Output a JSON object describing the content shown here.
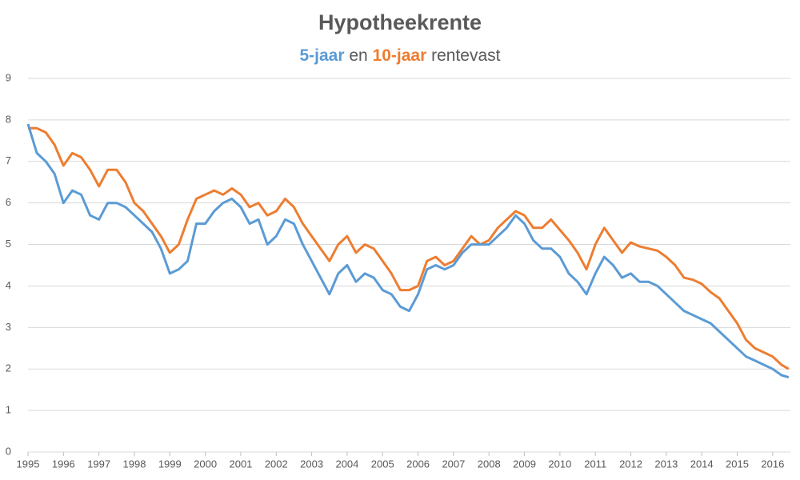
{
  "chart_data": {
    "type": "line",
    "title": "Hypotheekrente",
    "subtitle_parts": [
      "en",
      "rentevast"
    ],
    "x": [
      1995,
      1995.25,
      1995.5,
      1995.75,
      1996,
      1996.25,
      1996.5,
      1996.75,
      1997,
      1997.25,
      1997.5,
      1997.75,
      1998,
      1998.25,
      1998.5,
      1998.75,
      1999,
      1999.25,
      1999.5,
      1999.75,
      2000,
      2000.25,
      2000.5,
      2000.75,
      2001,
      2001.25,
      2001.5,
      2001.75,
      2002,
      2002.25,
      2002.5,
      2002.75,
      2003,
      2003.25,
      2003.5,
      2003.75,
      2004,
      2004.25,
      2004.5,
      2004.75,
      2005,
      2005.25,
      2005.5,
      2005.75,
      2006,
      2006.25,
      2006.5,
      2006.75,
      2007,
      2007.25,
      2007.5,
      2007.75,
      2008,
      2008.25,
      2008.5,
      2008.75,
      2009,
      2009.25,
      2009.5,
      2009.75,
      2010,
      2010.25,
      2010.5,
      2010.75,
      2011,
      2011.25,
      2011.5,
      2011.75,
      2012,
      2012.25,
      2012.5,
      2012.75,
      2013,
      2013.25,
      2013.5,
      2013.75,
      2014,
      2014.25,
      2014.5,
      2014.75,
      2015,
      2015.25,
      2015.5,
      2015.75,
      2016,
      2016.25,
      2016.45
    ],
    "series": [
      {
        "name": "5-jaar",
        "color": "#5b9bd5",
        "values": [
          7.9,
          7.2,
          7.0,
          6.7,
          6.0,
          6.3,
          6.2,
          5.7,
          5.6,
          6.0,
          6.0,
          5.9,
          5.7,
          5.5,
          5.3,
          4.9,
          4.3,
          4.4,
          4.6,
          5.5,
          5.5,
          5.8,
          6.0,
          6.1,
          5.9,
          5.5,
          5.6,
          5.0,
          5.2,
          5.6,
          5.5,
          5.0,
          4.6,
          4.2,
          3.8,
          4.3,
          4.5,
          4.1,
          4.3,
          4.2,
          3.9,
          3.8,
          3.5,
          3.4,
          3.8,
          4.4,
          4.5,
          4.4,
          4.5,
          4.8,
          5.0,
          5.0,
          5.0,
          5.2,
          5.4,
          5.7,
          5.5,
          5.1,
          4.9,
          4.9,
          4.7,
          4.3,
          4.1,
          3.8,
          4.3,
          4.7,
          4.5,
          4.2,
          4.3,
          4.1,
          4.1,
          4.0,
          3.8,
          3.6,
          3.4,
          3.3,
          3.2,
          3.1,
          2.9,
          2.7,
          2.5,
          2.3,
          2.2,
          2.1,
          2.0,
          1.85,
          1.8
        ]
      },
      {
        "name": "10-jaar",
        "color": "#ed7d31",
        "values": [
          7.8,
          7.8,
          7.7,
          7.4,
          6.9,
          7.2,
          7.1,
          6.8,
          6.4,
          6.8,
          6.8,
          6.5,
          6.0,
          5.8,
          5.5,
          5.2,
          4.8,
          5.0,
          5.6,
          6.1,
          6.2,
          6.3,
          6.2,
          6.35,
          6.2,
          5.9,
          6.0,
          5.7,
          5.8,
          6.1,
          5.9,
          5.5,
          5.2,
          4.9,
          4.6,
          5.0,
          5.2,
          4.8,
          5.0,
          4.9,
          4.6,
          4.3,
          3.9,
          3.9,
          4.0,
          4.6,
          4.7,
          4.5,
          4.6,
          4.9,
          5.2,
          5.0,
          5.1,
          5.4,
          5.6,
          5.8,
          5.7,
          5.4,
          5.4,
          5.6,
          5.35,
          5.1,
          4.8,
          4.4,
          5.0,
          5.4,
          5.1,
          4.8,
          5.05,
          4.95,
          4.9,
          4.85,
          4.7,
          4.5,
          4.2,
          4.15,
          4.05,
          3.85,
          3.7,
          3.4,
          3.1,
          2.7,
          2.5,
          2.4,
          2.3,
          2.1,
          2.0
        ]
      }
    ],
    "xlim": [
      1995,
      2016.5
    ],
    "xticks": [
      1995,
      1996,
      1997,
      1998,
      1999,
      2000,
      2001,
      2002,
      2003,
      2004,
      2005,
      2006,
      2007,
      2008,
      2009,
      2010,
      2011,
      2012,
      2013,
      2014,
      2015,
      2016
    ],
    "ylim": [
      0,
      9
    ],
    "yticks": [
      0,
      1,
      2,
      3,
      4,
      5,
      6,
      7,
      8,
      9
    ],
    "grid": true
  }
}
